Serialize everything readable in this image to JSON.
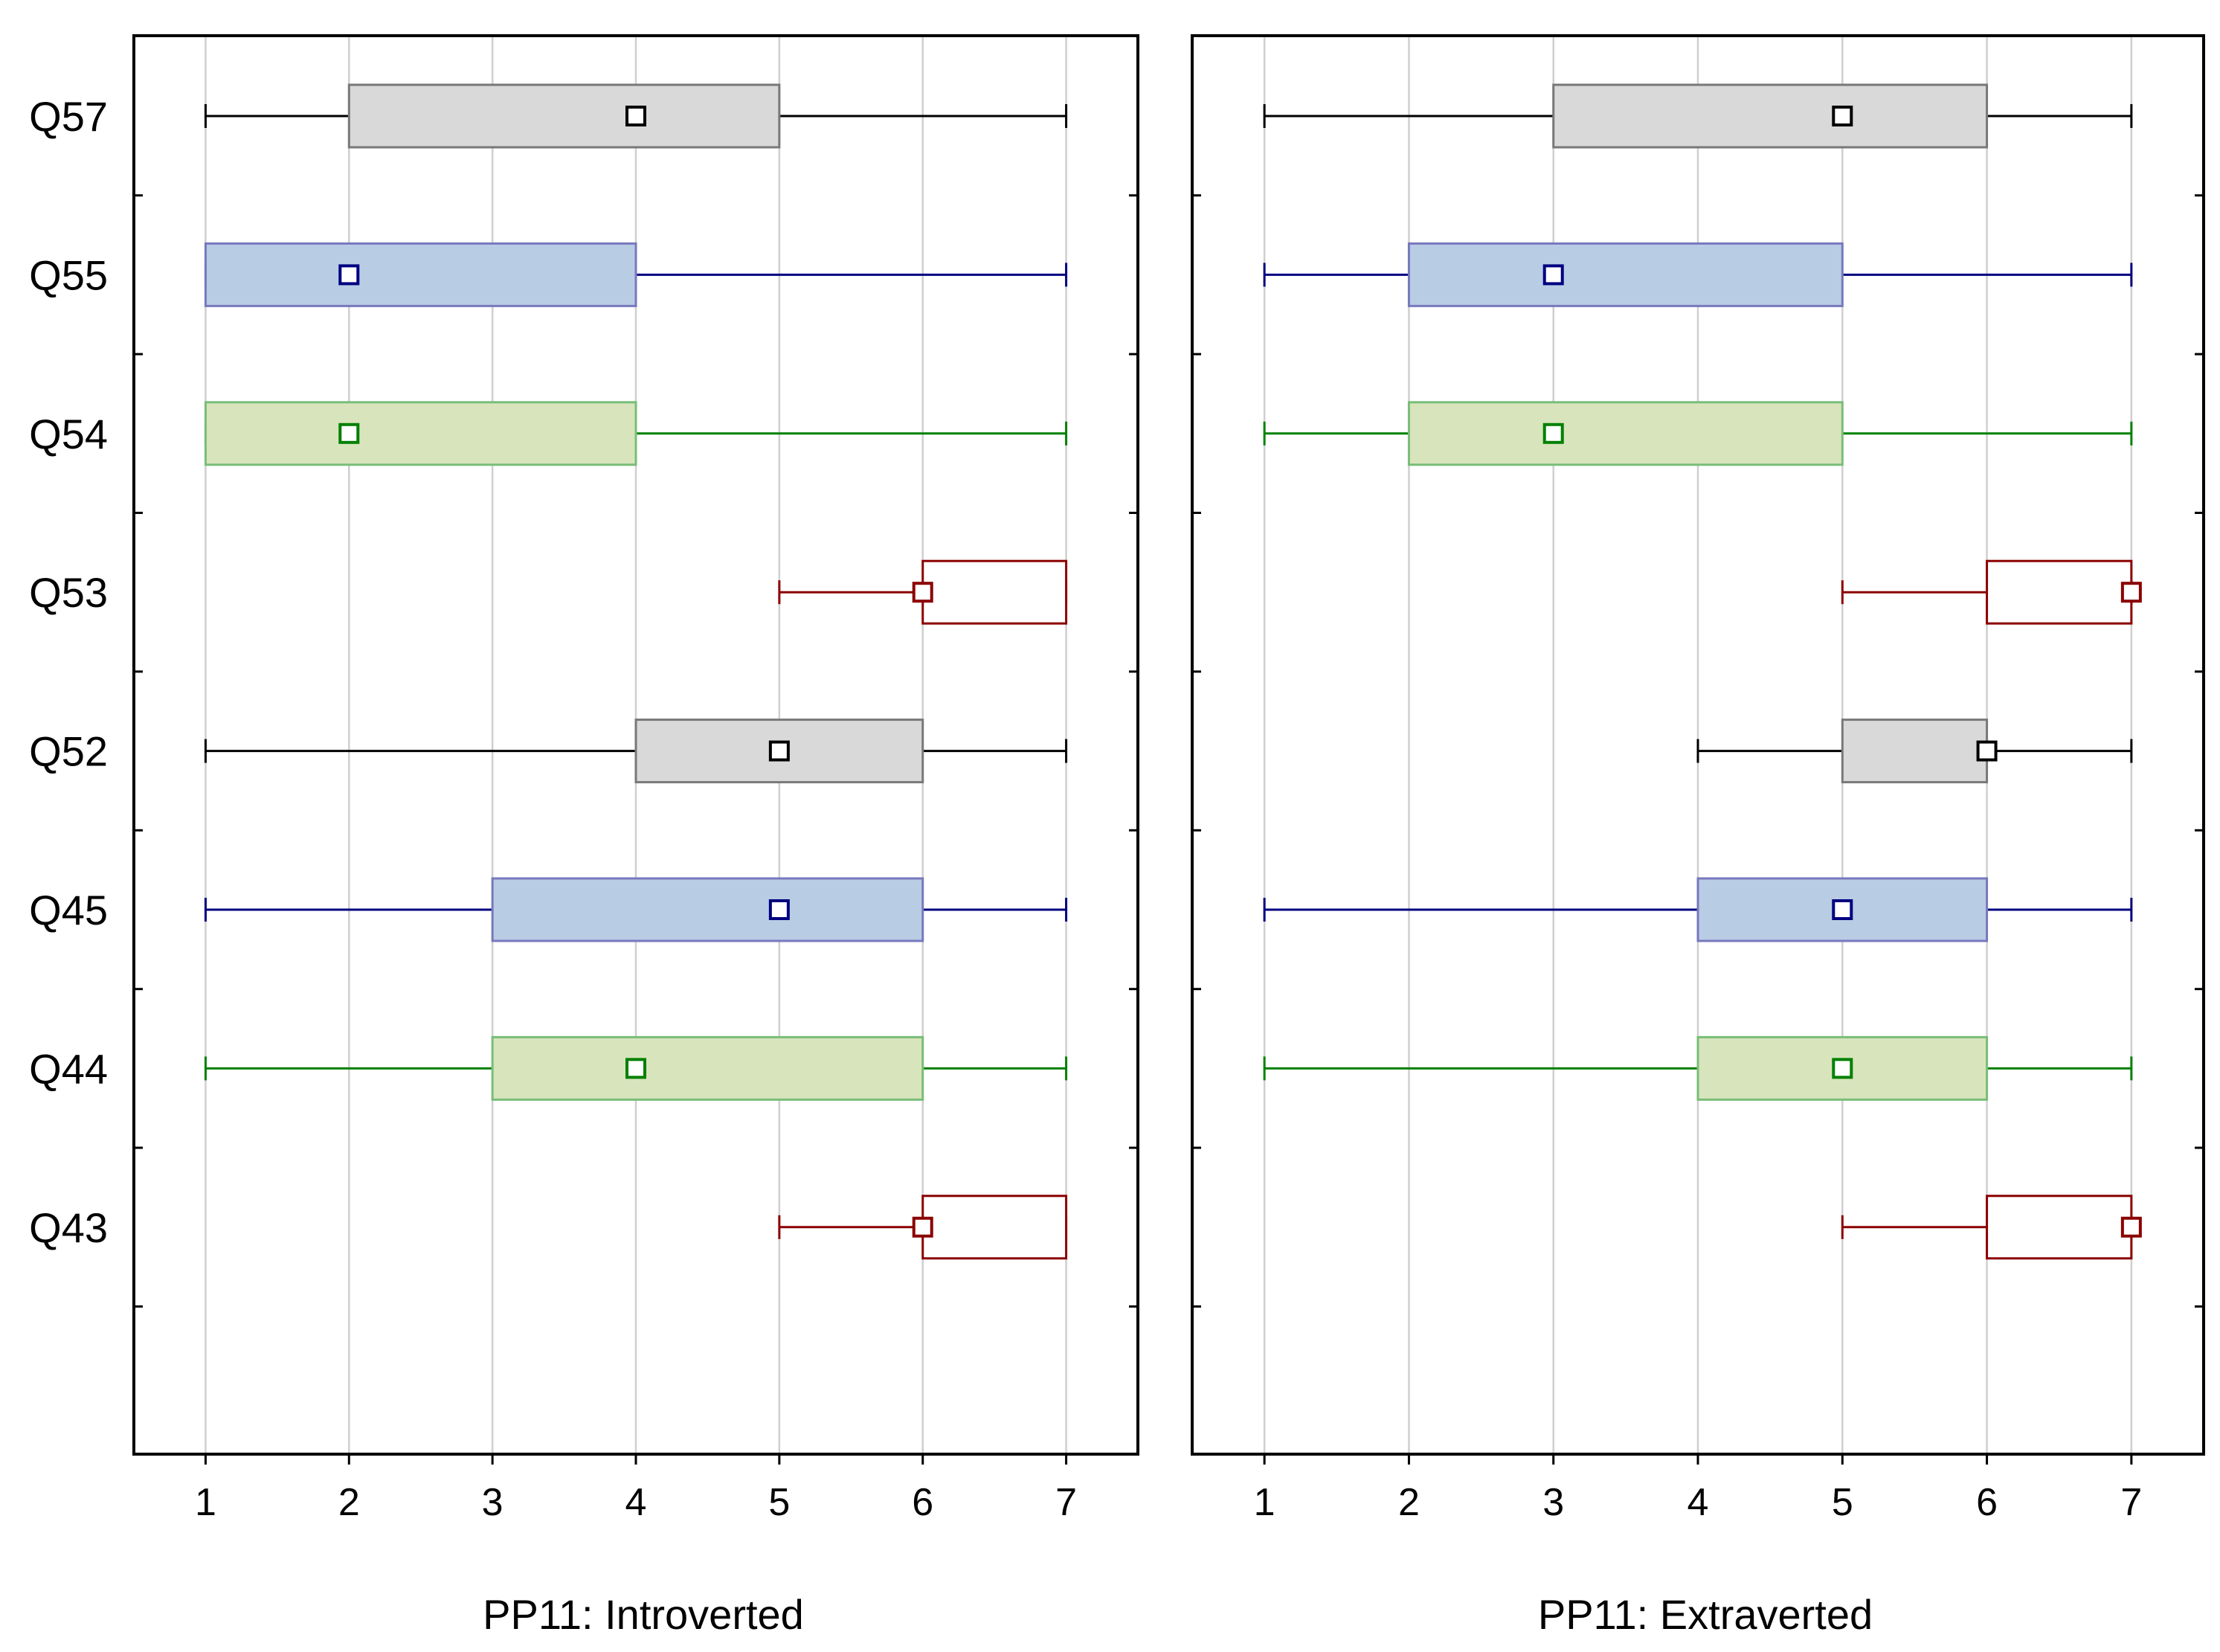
{
  "chart_data": [
    {
      "type": "boxplot",
      "orientation": "horizontal",
      "panel": "left",
      "title": "",
      "xlabel": "PP11: Introverted",
      "ylabel": "",
      "xlim": [
        0.5,
        7.5
      ],
      "x_ticks": [
        "1",
        "2",
        "3",
        "4",
        "5",
        "6",
        "7"
      ],
      "grid": "vertical",
      "categories": [
        "Q57",
        "Q55",
        "Q54",
        "Q53",
        "Q52",
        "Q45",
        "Q44",
        "Q43"
      ],
      "boxes": [
        {
          "category": "Q57",
          "min": 1,
          "q1": 2,
          "median": 4,
          "q3": 5,
          "max": 7,
          "color": "#000000",
          "fill": "#d9d9d9"
        },
        {
          "category": "Q55",
          "min": 1,
          "q1": 1,
          "median": 2,
          "q3": 4,
          "max": 7,
          "color": "#000080",
          "fill": "#b8cce4"
        },
        {
          "category": "Q54",
          "min": 1,
          "q1": 1,
          "median": 2,
          "q3": 4,
          "max": 7,
          "color": "#008000",
          "fill": "#d8e4bc"
        },
        {
          "category": "Q53",
          "min": 5,
          "q1": 6,
          "median": 6,
          "q3": 7,
          "max": 7,
          "color": "#8b0000",
          "fill": "#ffffff"
        },
        {
          "category": "Q52",
          "min": 1,
          "q1": 4,
          "median": 5,
          "q3": 6,
          "max": 7,
          "color": "#000000",
          "fill": "#d9d9d9"
        },
        {
          "category": "Q45",
          "min": 1,
          "q1": 3,
          "median": 5,
          "q3": 6,
          "max": 7,
          "color": "#000080",
          "fill": "#b8cce4"
        },
        {
          "category": "Q44",
          "min": 1,
          "q1": 3,
          "median": 4,
          "q3": 6,
          "max": 7,
          "color": "#008000",
          "fill": "#d8e4bc"
        },
        {
          "category": "Q43",
          "min": 5,
          "q1": 6,
          "median": 6,
          "q3": 7,
          "max": 7,
          "color": "#8b0000",
          "fill": "#ffffff"
        }
      ]
    },
    {
      "type": "boxplot",
      "orientation": "horizontal",
      "panel": "right",
      "title": "",
      "xlabel": "PP11: Extraverted",
      "ylabel": "",
      "xlim": [
        0.5,
        7.5
      ],
      "x_ticks": [
        "1",
        "2",
        "3",
        "4",
        "5",
        "6",
        "7"
      ],
      "grid": "vertical",
      "categories": [
        "Q57",
        "Q55",
        "Q54",
        "Q53",
        "Q52",
        "Q45",
        "Q44",
        "Q43"
      ],
      "boxes": [
        {
          "category": "Q57",
          "min": 1,
          "q1": 3,
          "median": 5,
          "q3": 6,
          "max": 7,
          "color": "#000000",
          "fill": "#d9d9d9"
        },
        {
          "category": "Q55",
          "min": 1,
          "q1": 2,
          "median": 3,
          "q3": 5,
          "max": 7,
          "color": "#000080",
          "fill": "#b8cce4"
        },
        {
          "category": "Q54",
          "min": 1,
          "q1": 2,
          "median": 3,
          "q3": 5,
          "max": 7,
          "color": "#008000",
          "fill": "#d8e4bc"
        },
        {
          "category": "Q53",
          "min": 5,
          "q1": 6,
          "median": 7,
          "q3": 7,
          "max": 7,
          "color": "#8b0000",
          "fill": "#ffffff"
        },
        {
          "category": "Q52",
          "min": 4,
          "q1": 5,
          "median": 6,
          "q3": 6,
          "max": 7,
          "color": "#000000",
          "fill": "#d9d9d9"
        },
        {
          "category": "Q45",
          "min": 1,
          "q1": 4,
          "median": 5,
          "q3": 6,
          "max": 7,
          "color": "#000080",
          "fill": "#b8cce4"
        },
        {
          "category": "Q44",
          "min": 1,
          "q1": 4,
          "median": 5,
          "q3": 6,
          "max": 7,
          "color": "#008000",
          "fill": "#d8e4bc"
        },
        {
          "category": "Q43",
          "min": 5,
          "q1": 6,
          "median": 7,
          "q3": 7,
          "max": 7,
          "color": "#8b0000",
          "fill": "#ffffff"
        }
      ]
    }
  ],
  "style": {
    "frame_color": "#000000",
    "grid_color": "#cfcfcf",
    "box_border_gray": "#7f7f7f"
  }
}
